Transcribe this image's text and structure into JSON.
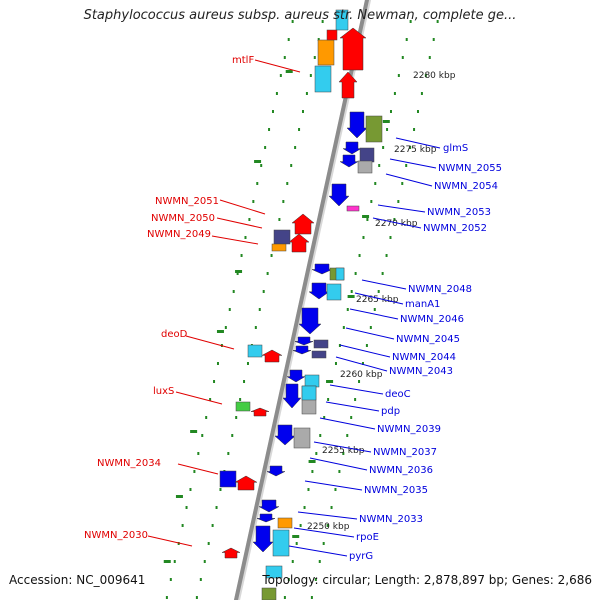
{
  "title": "Staphylococcus aureus subsp. aureus str. Newman, complete ge...",
  "footer": {
    "accession": "Accession: NC_009641",
    "summary": "Topology: circular; Length: 2,878,897 bp; Genes: 2,686"
  },
  "colors": {
    "forward_label": "#e00000",
    "reverse_label": "#0000dd",
    "backbone": "#8c8c8c",
    "tick": "#228822",
    "gene_forward": "#ff0000",
    "gene_reverse": "#0000ee",
    "cyan": "#33ccee",
    "orange": "#ff9900",
    "olive": "#779933",
    "navy": "#444488",
    "grey": "#aaaaaa",
    "magenta": "#ff33cc",
    "green": "#44cc44"
  },
  "ruler": [
    "2280 kbp",
    "2275 kbp",
    "2270 kbp",
    "2265 kbp",
    "2260 kbp",
    "2255 kbp",
    "2250 kbp"
  ],
  "forward_genes": [
    "mtlF",
    "NWMN_2051",
    "NWMN_2050",
    "NWMN_2049",
    "deoD",
    "luxS",
    "NWMN_2034",
    "NWMN_2030"
  ],
  "reverse_genes": [
    "glmS",
    "NWMN_2055",
    "NWMN_2054",
    "NWMN_2053",
    "NWMN_2052",
    "NWMN_2048",
    "manA1",
    "NWMN_2046",
    "NWMN_2045",
    "NWMN_2044",
    "NWMN_2043",
    "deoC",
    "pdp",
    "NWMN_2039",
    "NWMN_2037",
    "NWMN_2036",
    "NWMN_2035",
    "NWMN_2033",
    "rpoE",
    "pyrG"
  ]
}
